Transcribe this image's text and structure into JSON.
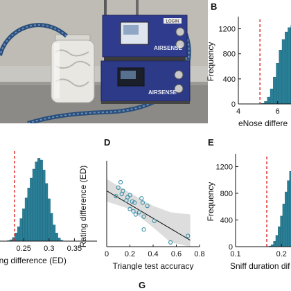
{
  "panels": {
    "B": "B",
    "D": "D",
    "E": "E",
    "G": "G"
  },
  "device": {
    "brand_top": "AIRSENSE",
    "brand_bottom": "AIRSENSE",
    "badge": "LOGIN"
  },
  "colors": {
    "bar": "#2a7f96",
    "bar_edge": "#1c5f72",
    "threshold": "#e02020",
    "ci_band": "#d9d9d9",
    "point": "#3a8fa8"
  },
  "chart_data": [
    {
      "id": "B",
      "type": "bar",
      "title": "",
      "xlabel": "eNose differe",
      "ylabel": "Frequency",
      "xlim": [
        4,
        7.6
      ],
      "ylim": [
        0,
        1350
      ],
      "xticks": [
        "4",
        "6"
      ],
      "xtick_values": [
        4,
        6
      ],
      "yticks": [
        "0",
        "400",
        "800",
        "1200"
      ],
      "ytick_values": [
        0,
        400,
        800,
        1200
      ],
      "threshold": 5.1,
      "bins": [
        5.25,
        5.4,
        5.55,
        5.7,
        5.85,
        6.0,
        6.15,
        6.3,
        6.45,
        6.6,
        6.75,
        6.9,
        7.05,
        7.2,
        7.35,
        7.5
      ],
      "bin_width": 0.15,
      "values": [
        10,
        40,
        110,
        240,
        430,
        650,
        860,
        1030,
        1150,
        1220,
        1260,
        1270,
        1270,
        1270,
        1270,
        1270
      ]
    },
    {
      "id": "C",
      "type": "bar",
      "title": "",
      "xlabel": "ing difference (ED)",
      "ylabel": "",
      "xlim": [
        0.195,
        0.37
      ],
      "ylim": [
        0,
        1000
      ],
      "xticks": [
        "0.25",
        "0.3",
        "0.35"
      ],
      "xtick_values": [
        0.25,
        0.3,
        0.35
      ],
      "threshold": 0.232,
      "bin_width": 0.005,
      "bins": [
        0.2,
        0.205,
        0.21,
        0.215,
        0.22,
        0.225,
        0.23,
        0.235,
        0.24,
        0.245,
        0.25,
        0.255,
        0.26,
        0.265,
        0.27,
        0.275,
        0.28,
        0.285,
        0.29,
        0.295,
        0.3,
        0.305,
        0.31,
        0.315,
        0.32,
        0.325
      ],
      "values": [
        0,
        0,
        0,
        0,
        5,
        15,
        40,
        90,
        160,
        250,
        360,
        480,
        590,
        700,
        800,
        880,
        920,
        900,
        790,
        640,
        470,
        310,
        180,
        90,
        35,
        10
      ]
    },
    {
      "id": "D",
      "type": "scatter",
      "title": "",
      "xlabel": "Triangle test accuracy",
      "ylabel": "Rating difference (ED)",
      "xlim": [
        0,
        0.8
      ],
      "ylim": [
        0,
        0.8
      ],
      "xticks": [
        "0",
        "0.2",
        "0.4",
        "0.6",
        "0.8"
      ],
      "xtick_values": [
        0,
        0.2,
        0.4,
        0.6,
        0.8
      ],
      "fit": {
        "x": [
          0,
          0.72
        ],
        "y": [
          0.52,
          0.06
        ]
      },
      "band_upper": [
        [
          0,
          0.63
        ],
        [
          0.2,
          0.5
        ],
        [
          0.4,
          0.38
        ],
        [
          0.55,
          0.32
        ],
        [
          0.72,
          0.3
        ]
      ],
      "band_lower": [
        [
          0,
          0.42
        ],
        [
          0.2,
          0.35
        ],
        [
          0.4,
          0.18
        ],
        [
          0.55,
          0.04
        ],
        [
          0.72,
          -0.18
        ]
      ],
      "points": [
        [
          0.08,
          0.47
        ],
        [
          0.1,
          0.55
        ],
        [
          0.12,
          0.6
        ],
        [
          0.13,
          0.49
        ],
        [
          0.14,
          0.52
        ],
        [
          0.17,
          0.43
        ],
        [
          0.18,
          0.46
        ],
        [
          0.2,
          0.35
        ],
        [
          0.2,
          0.48
        ],
        [
          0.22,
          0.42
        ],
        [
          0.23,
          0.33
        ],
        [
          0.24,
          0.41
        ],
        [
          0.25,
          0.3
        ],
        [
          0.28,
          0.32
        ],
        [
          0.3,
          0.45
        ],
        [
          0.31,
          0.41
        ],
        [
          0.32,
          0.28
        ],
        [
          0.32,
          0.16
        ],
        [
          0.35,
          0.38
        ],
        [
          0.41,
          0.24
        ],
        [
          0.55,
          0.04
        ],
        [
          0.7,
          0.1
        ]
      ]
    },
    {
      "id": "E",
      "type": "bar",
      "title": "",
      "xlabel": "Sniff duration dif",
      "ylabel": "Frequency",
      "xlim": [
        0.1,
        0.26
      ],
      "ylim": [
        0,
        1350
      ],
      "xticks": [
        "0.1",
        "0.2"
      ],
      "xtick_values": [
        0.1,
        0.2
      ],
      "yticks": [
        "0",
        "400",
        "800",
        "1200"
      ],
      "ytick_values": [
        0,
        400,
        800,
        1200
      ],
      "threshold": 0.168,
      "bin_width": 0.005,
      "bins": [
        0.175,
        0.18,
        0.185,
        0.19,
        0.195,
        0.2,
        0.205,
        0.21,
        0.215,
        0.22,
        0.225,
        0.23,
        0.235,
        0.24,
        0.245,
        0.25,
        0.255
      ],
      "values": [
        10,
        30,
        80,
        170,
        300,
        460,
        640,
        820,
        990,
        1130,
        1230,
        1280,
        1290,
        1290,
        1290,
        1290,
        1290
      ]
    }
  ]
}
